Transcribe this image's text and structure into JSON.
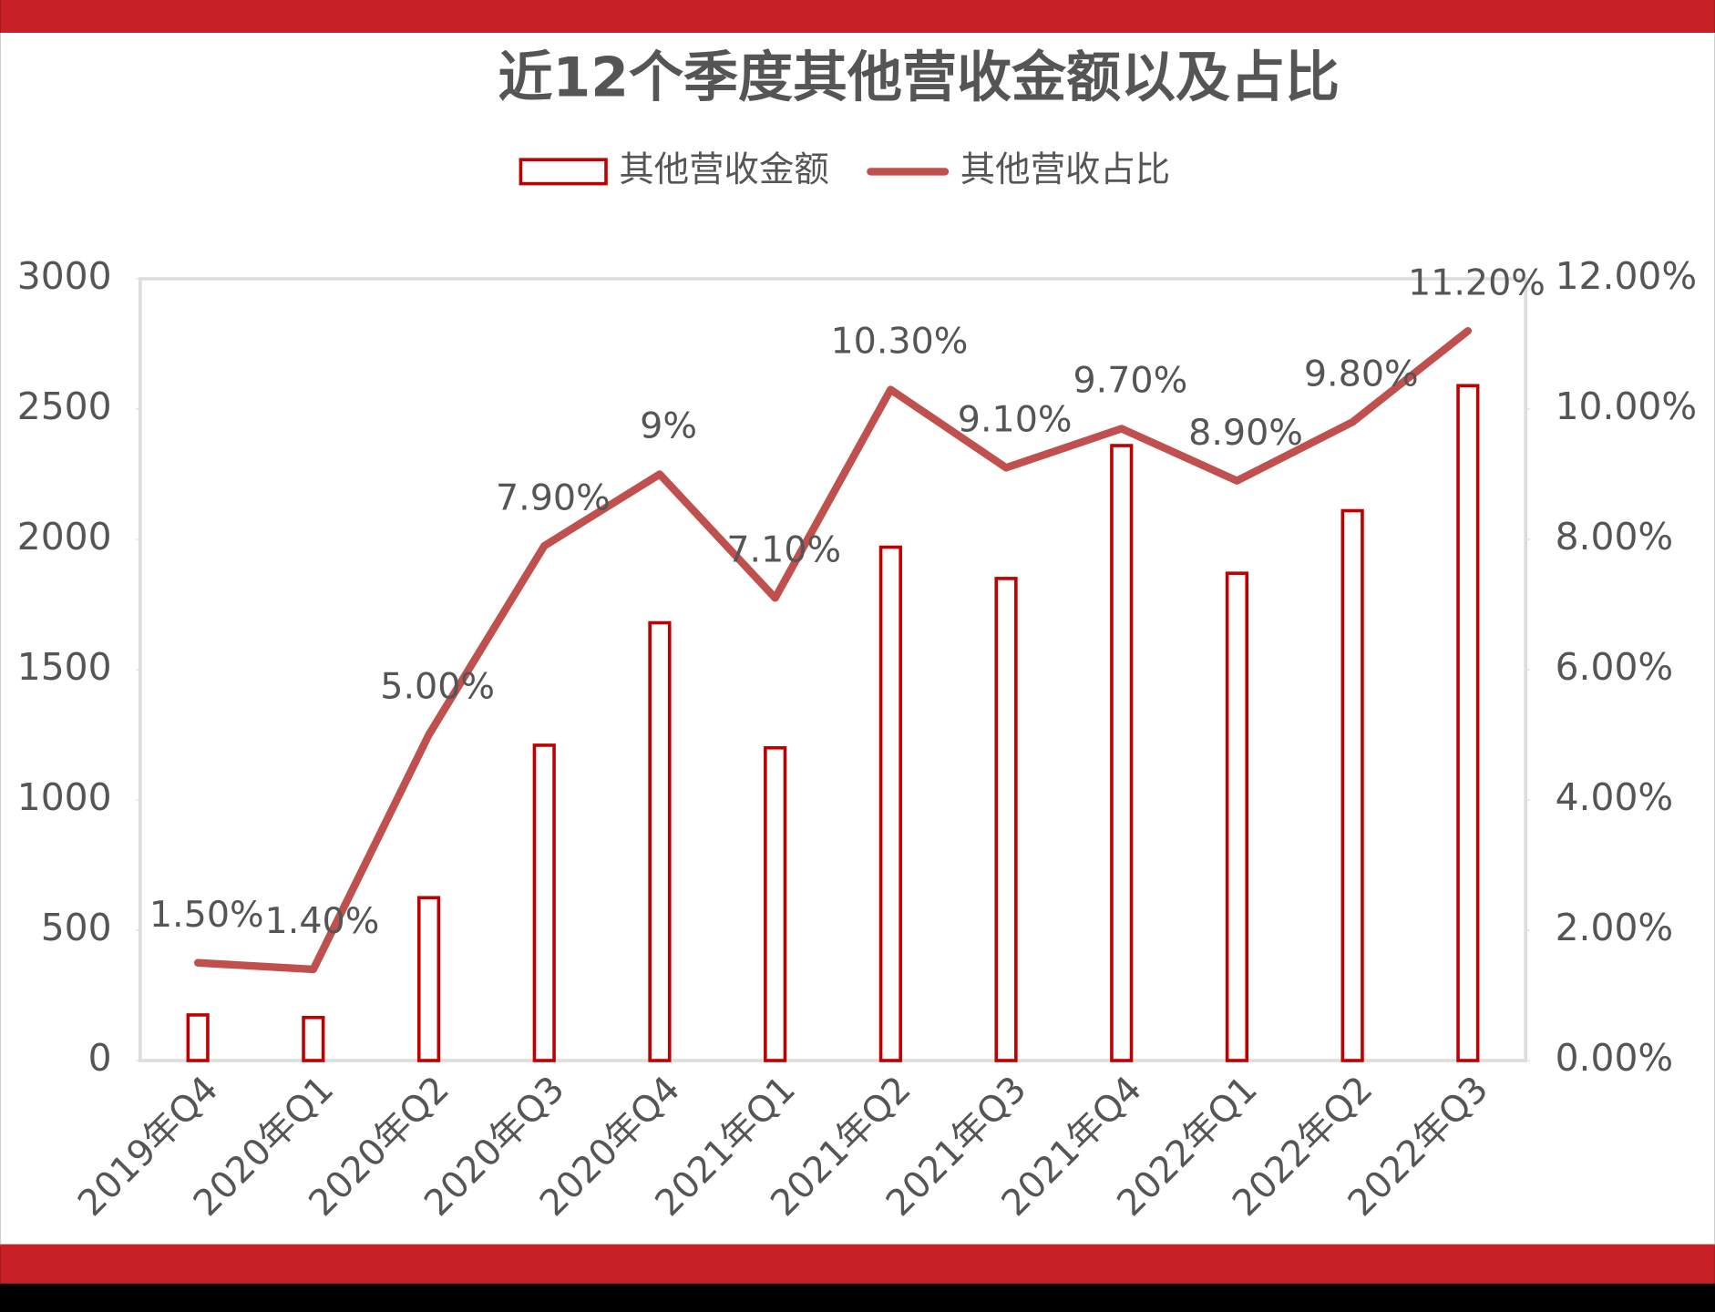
{
  "chart_data": {
    "type": "bar-line",
    "title": "近12个季度其他营收金额以及占比",
    "categories": [
      "2019年Q4",
      "2020年Q1",
      "2020年Q2",
      "2020年Q3",
      "2020年Q4",
      "2021年Q1",
      "2021年Q2",
      "2021年Q3",
      "2021年Q4",
      "2022年Q1",
      "2022年Q2",
      "2022年Q3"
    ],
    "series": [
      {
        "name": "其他营收金额",
        "type": "bar",
        "color": "#c00000",
        "values": [
          175,
          165,
          625,
          1210,
          1680,
          1200,
          1970,
          1850,
          2360,
          1870,
          2110,
          2590
        ]
      },
      {
        "name": "其他营收占比",
        "type": "line",
        "axis": "y2",
        "color": "#c0504d",
        "values": [
          1.5,
          1.4,
          5.0,
          7.9,
          9,
          7.1,
          10.3,
          9.1,
          9.7,
          8.9,
          9.8,
          11.2
        ],
        "value_labels": [
          "1.50%",
          "1.40%",
          "5.00%",
          "7.90%",
          "9%",
          "7.10%",
          "10.30%",
          "9.10%",
          "9.70%",
          "8.90%",
          "9.80%",
          "11.20%"
        ]
      }
    ],
    "ylim": [
      0,
      3000
    ],
    "yticks": [
      0,
      500,
      1000,
      1500,
      2000,
      2500,
      3000
    ],
    "y2lim": [
      0,
      12
    ],
    "y2ticks": [
      {
        "value": 0,
        "label": "0.00%"
      },
      {
        "value": 2,
        "label": "2.00%"
      },
      {
        "value": 4,
        "label": "4.00%"
      },
      {
        "value": 6,
        "label": "6.00%"
      },
      {
        "value": 8,
        "label": "8.00%"
      },
      {
        "value": 10,
        "label": "10.00%"
      },
      {
        "value": 12,
        "label": "12.00%"
      }
    ],
    "legend": "top"
  }
}
